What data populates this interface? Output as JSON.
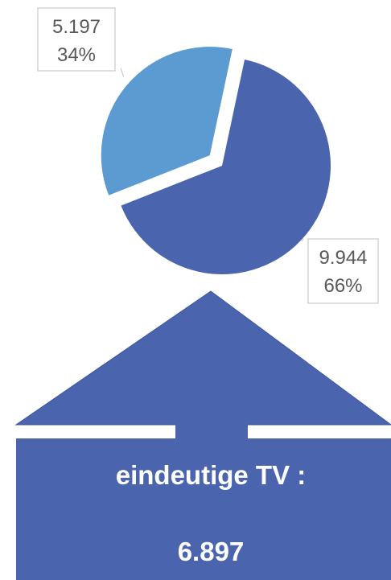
{
  "chart_data": {
    "type": "pie",
    "values": [
      5197,
      9944
    ],
    "value_labels": [
      "5.197",
      "9.944"
    ],
    "percent_labels": [
      "34%",
      "66%"
    ],
    "colors": [
      "#5b9bd2",
      "#4a65ae"
    ],
    "annotation_lines": [
      "eindeutige TV :",
      "6.897"
    ]
  }
}
